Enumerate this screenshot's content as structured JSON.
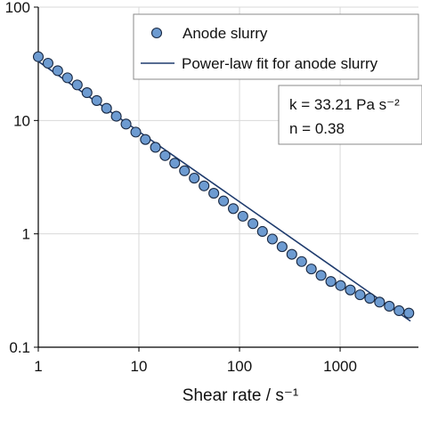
{
  "chart_data": {
    "type": "scatter",
    "x_scale": "log",
    "y_scale": "log",
    "xlim": [
      1,
      6000
    ],
    "ylim": [
      0.1,
      100
    ],
    "grid": true,
    "xlabel": "Shear rate / s⁻¹",
    "ylabel": "",
    "x_ticks": [
      1,
      10,
      100,
      1000
    ],
    "x_tick_labels": [
      "1",
      "10",
      "100",
      "1000"
    ],
    "y_ticks": [
      0.1,
      1,
      10,
      100
    ],
    "y_tick_labels": [
      "0.1",
      "1",
      "10",
      "100"
    ],
    "legend": {
      "placement": "top-right",
      "entries": [
        {
          "label": "Anode slurry",
          "marker": "circle"
        },
        {
          "label": "Power-law fit for anode slurry",
          "marker": "line"
        }
      ]
    },
    "annotation": {
      "lines": [
        "k = 33.21 Pa s⁻²",
        "n = 0.38"
      ]
    },
    "fit": {
      "k": 33.21,
      "n": 0.38
    },
    "series": [
      {
        "name": "Anode slurry",
        "kind": "points",
        "x": [
          1,
          1.25,
          1.56,
          1.95,
          2.44,
          3.05,
          3.81,
          4.77,
          5.96,
          7.45,
          9.31,
          11.6,
          14.6,
          18.2,
          22.7,
          28.4,
          35.5,
          44.4,
          55.5,
          69.4,
          86.7,
          108,
          136,
          169,
          212,
          265,
          331,
          414,
          517,
          646,
          808,
          1010,
          1262,
          1578,
          1972,
          2465,
          3081,
          3852,
          4815
        ],
        "y": [
          36.5,
          32.0,
          27.5,
          23.8,
          20.6,
          17.6,
          15.0,
          12.8,
          10.9,
          9.3,
          7.9,
          6.8,
          5.8,
          4.9,
          4.2,
          3.6,
          3.1,
          2.65,
          2.28,
          1.95,
          1.67,
          1.43,
          1.23,
          1.05,
          0.9,
          0.77,
          0.66,
          0.57,
          0.49,
          0.43,
          0.38,
          0.35,
          0.32,
          0.29,
          0.27,
          0.25,
          0.23,
          0.21,
          0.2
        ]
      },
      {
        "name": "Power-law fit for anode slurry",
        "kind": "line",
        "x": [
          1,
          5000
        ],
        "y": [
          33.21,
          0.17
        ]
      }
    ],
    "colors": {
      "marker_fill": "#6d9bd1",
      "marker_edge": "#1a2a44",
      "fit_line": "#1f3c6e",
      "grid": "#d9d9d9",
      "axis": "#000000"
    }
  }
}
